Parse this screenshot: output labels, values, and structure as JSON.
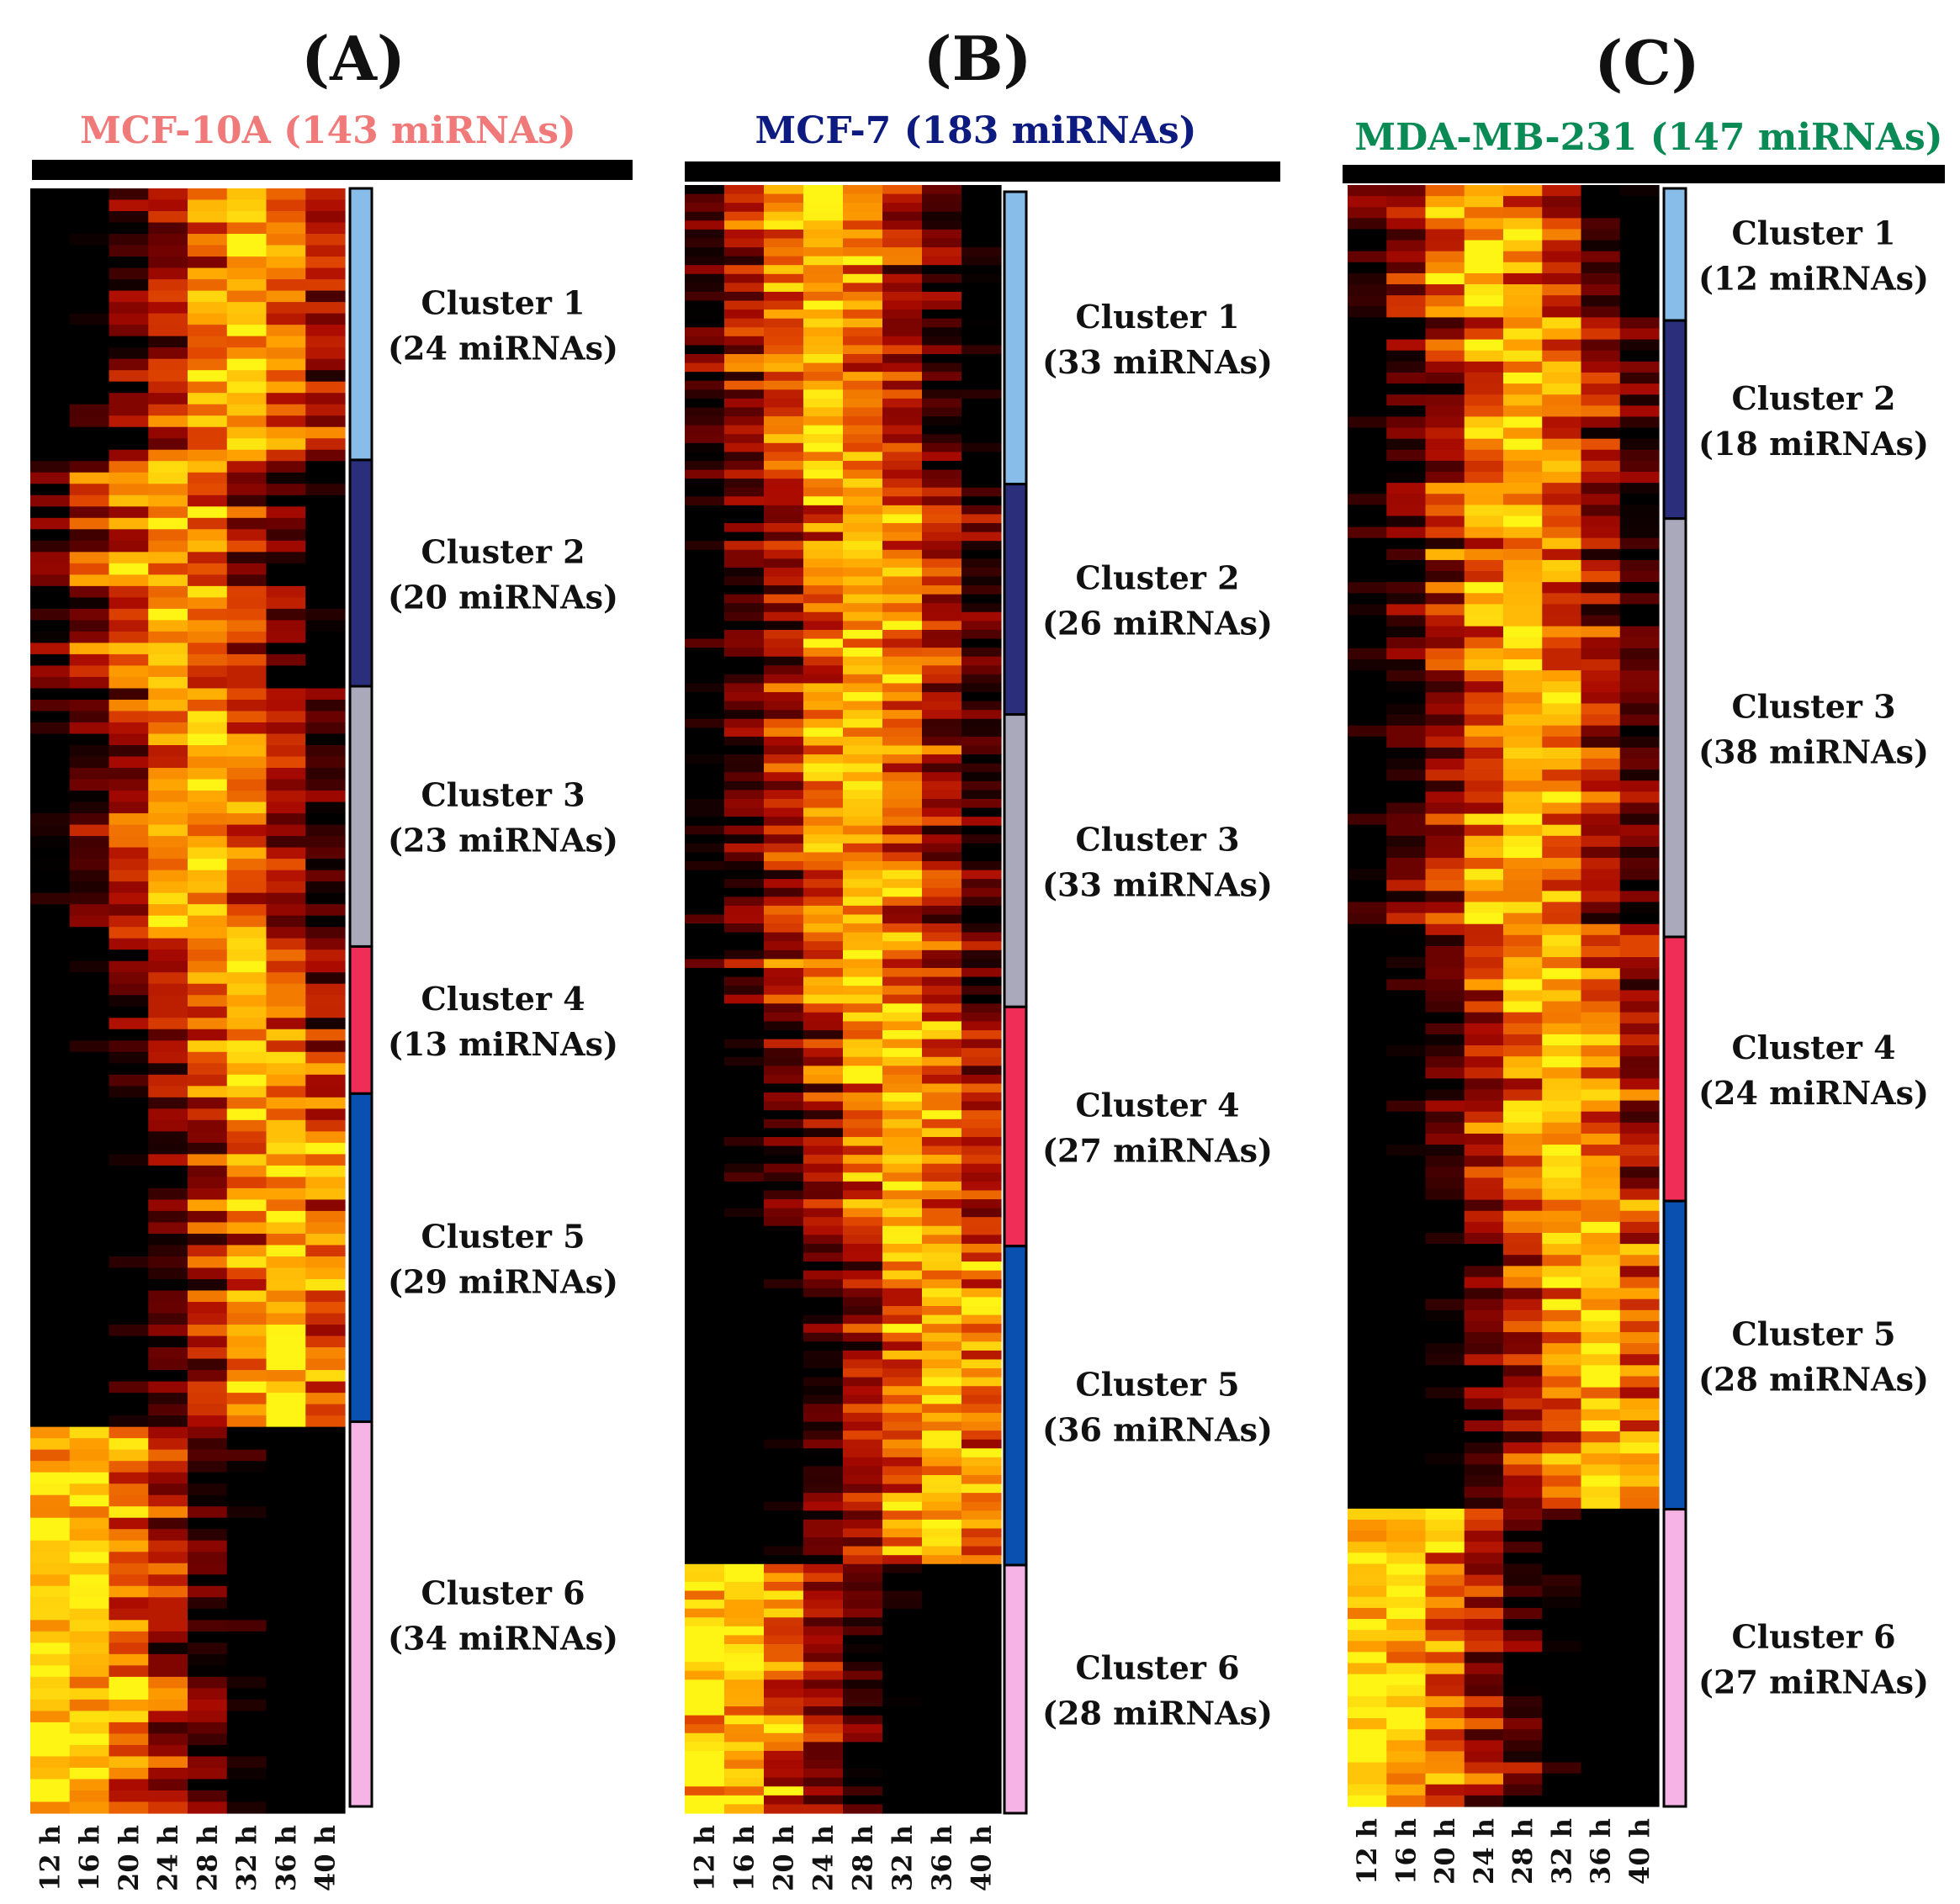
{
  "chart_data": [
    {
      "type": "heatmap",
      "panel_letter": "(A)",
      "title": "MCF-10A (143 miRNAs)",
      "title_color": "#f07a7a",
      "x_labels": [
        "12 h",
        "16 h",
        "20 h",
        "24 h",
        "28 h",
        "32 h",
        "36 h",
        "40 h"
      ],
      "peak_column_by_cluster": [
        5,
        3,
        4,
        5,
        6,
        1
      ],
      "clusters": [
        {
          "name": "Cluster 1",
          "count_label": "(24 miRNAs)",
          "size": 24,
          "color": "#87bde8"
        },
        {
          "name": "Cluster 2",
          "count_label": "(20 miRNAs)",
          "size": 20,
          "color": "#2b2e7a"
        },
        {
          "name": "Cluster 3",
          "count_label": "(23 miRNAs)",
          "size": 23,
          "color": "#a9a9bb"
        },
        {
          "name": "Cluster 4",
          "count_label": "(13 miRNAs)",
          "size": 13,
          "color": "#f02d56"
        },
        {
          "name": "Cluster 5",
          "count_label": "(29 miRNAs)",
          "size": 29,
          "color": "#0a50b0"
        },
        {
          "name": "Cluster 6",
          "count_label": "(34 miRNAs)",
          "size": 34,
          "color": "#f5b3e6"
        }
      ]
    },
    {
      "type": "heatmap",
      "panel_letter": "(B)",
      "title": "MCF-7 (183 miRNAs)",
      "title_color": "#0d1a80",
      "x_labels": [
        "12 h",
        "16 h",
        "20 h",
        "24 h",
        "28 h",
        "32 h",
        "36 h",
        "40 h"
      ],
      "peak_column_by_cluster": [
        3,
        4,
        4,
        5,
        6,
        1
      ],
      "clusters": [
        {
          "name": "Cluster 1",
          "count_label": "(33 miRNAs)",
          "size": 33,
          "color": "#87bde8"
        },
        {
          "name": "Cluster 2",
          "count_label": "(26 miRNAs)",
          "size": 26,
          "color": "#2b2e7a"
        },
        {
          "name": "Cluster 3",
          "count_label": "(33 miRNAs)",
          "size": 33,
          "color": "#a9a9bb"
        },
        {
          "name": "Cluster 4",
          "count_label": "(27 miRNAs)",
          "size": 27,
          "color": "#f02d56"
        },
        {
          "name": "Cluster 5",
          "count_label": "(36 miRNAs)",
          "size": 36,
          "color": "#0a50b0"
        },
        {
          "name": "Cluster 6",
          "count_label": "(28 miRNAs)",
          "size": 28,
          "color": "#f5b3e6"
        }
      ]
    },
    {
      "type": "heatmap",
      "panel_letter": "(C)",
      "title": "MDA-MB-231 (147 miRNAs)",
      "title_color": "#0a8a55",
      "x_labels": [
        "12 h",
        "16 h",
        "20 h",
        "24 h",
        "28 h",
        "32 h",
        "36 h",
        "40 h"
      ],
      "peak_column_by_cluster": [
        3,
        4,
        4,
        5,
        6,
        1
      ],
      "clusters": [
        {
          "name": "Cluster 1",
          "count_label": "(12 miRNAs)",
          "size": 12,
          "color": "#87bde8"
        },
        {
          "name": "Cluster 2",
          "count_label": "(18 miRNAs)",
          "size": 18,
          "color": "#2b2e7a"
        },
        {
          "name": "Cluster 3",
          "count_label": "(38 miRNAs)",
          "size": 38,
          "color": "#a9a9bb"
        },
        {
          "name": "Cluster 4",
          "count_label": "(24 miRNAs)",
          "size": 24,
          "color": "#f02d56"
        },
        {
          "name": "Cluster 5",
          "count_label": "(28 miRNAs)",
          "size": 28,
          "color": "#0a50b0"
        },
        {
          "name": "Cluster 6",
          "count_label": "(27 miRNAs)",
          "size": 27,
          "color": "#f5b3e6"
        }
      ]
    }
  ]
}
